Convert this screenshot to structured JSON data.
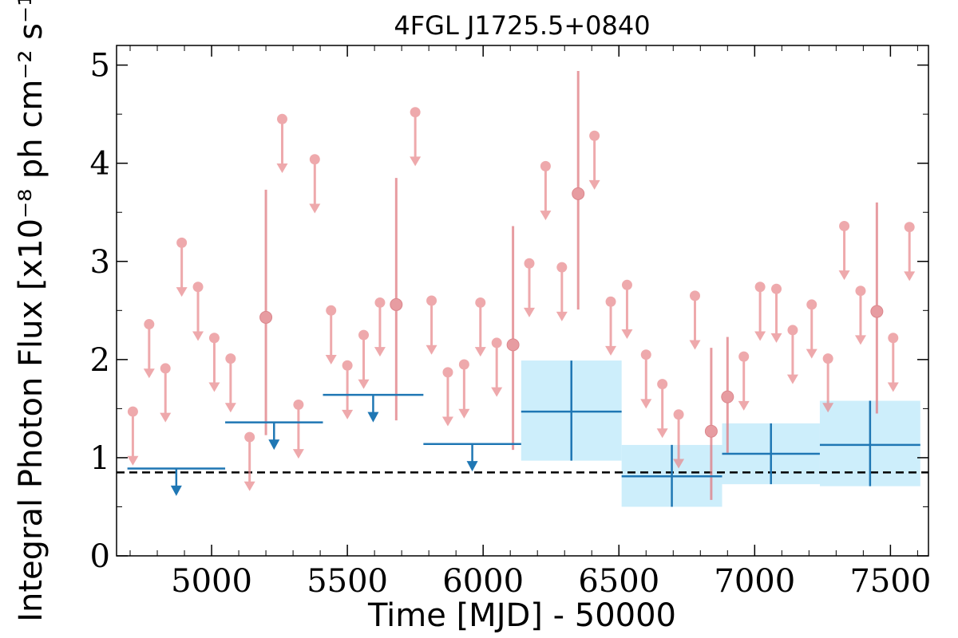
{
  "chart_data": {
    "type": "scatter",
    "title": "4FGL J1725.5+0840",
    "xlabel": "Time [MJD] - 50000",
    "ylabel": "Integral Photon Flux [x10⁻⁸ ph cm⁻² s⁻¹]",
    "xlim": [
      4650,
      7640
    ],
    "ylim": [
      0,
      5.2
    ],
    "xticks": [
      5000,
      5500,
      6000,
      6500,
      7000,
      7500
    ],
    "yticks": [
      0,
      1,
      2,
      3,
      4,
      5
    ],
    "xtick_labels": [
      "5000",
      "5500",
      "6000",
      "6500",
      "7000",
      "7500"
    ],
    "ytick_labels": [
      "0",
      "1",
      "2",
      "3",
      "4",
      "5"
    ],
    "grid": false,
    "reference_line": {
      "y": 0.85,
      "style": "dashed",
      "color": "#000000"
    },
    "series": [
      {
        "kind": "fine-bin-upper-limits",
        "color": "#e8868a",
        "points": [
          {
            "x": 4710,
            "y": 1.47
          },
          {
            "x": 4770,
            "y": 2.36
          },
          {
            "x": 4830,
            "y": 1.91
          },
          {
            "x": 4890,
            "y": 3.19
          },
          {
            "x": 4950,
            "y": 2.74
          },
          {
            "x": 5010,
            "y": 2.22
          },
          {
            "x": 5070,
            "y": 2.01
          },
          {
            "x": 5140,
            "y": 1.21
          },
          {
            "x": 5260,
            "y": 4.45
          },
          {
            "x": 5320,
            "y": 1.54
          },
          {
            "x": 5380,
            "y": 4.04
          },
          {
            "x": 5440,
            "y": 2.5
          },
          {
            "x": 5500,
            "y": 1.94
          },
          {
            "x": 5560,
            "y": 2.25
          },
          {
            "x": 5620,
            "y": 2.58
          },
          {
            "x": 5750,
            "y": 4.52
          },
          {
            "x": 5810,
            "y": 2.6
          },
          {
            "x": 5870,
            "y": 1.87
          },
          {
            "x": 5930,
            "y": 1.95
          },
          {
            "x": 5990,
            "y": 2.58
          },
          {
            "x": 6050,
            "y": 2.17
          },
          {
            "x": 6170,
            "y": 2.98
          },
          {
            "x": 6230,
            "y": 3.97
          },
          {
            "x": 6290,
            "y": 2.94
          },
          {
            "x": 6410,
            "y": 4.28
          },
          {
            "x": 6470,
            "y": 2.59
          },
          {
            "x": 6530,
            "y": 2.76
          },
          {
            "x": 6600,
            "y": 2.05
          },
          {
            "x": 6660,
            "y": 1.75
          },
          {
            "x": 6720,
            "y": 1.44
          },
          {
            "x": 6780,
            "y": 2.65
          },
          {
            "x": 6960,
            "y": 2.03
          },
          {
            "x": 7020,
            "y": 2.74
          },
          {
            "x": 7080,
            "y": 2.72
          },
          {
            "x": 7140,
            "y": 2.3
          },
          {
            "x": 7210,
            "y": 2.56
          },
          {
            "x": 7270,
            "y": 2.01
          },
          {
            "x": 7330,
            "y": 3.36
          },
          {
            "x": 7390,
            "y": 2.7
          },
          {
            "x": 7510,
            "y": 2.22
          },
          {
            "x": 7570,
            "y": 3.35
          }
        ]
      },
      {
        "kind": "fine-bin-detections",
        "color": "#e07b82",
        "points": [
          {
            "x": 5200,
            "y": 2.43,
            "ylo": 1.23,
            "yhi": 3.73
          },
          {
            "x": 5680,
            "y": 2.56,
            "ylo": 1.38,
            "yhi": 3.85
          },
          {
            "x": 6110,
            "y": 2.15,
            "ylo": 1.08,
            "yhi": 3.36
          },
          {
            "x": 6350,
            "y": 3.69,
            "ylo": 2.51,
            "yhi": 4.94
          },
          {
            "x": 6840,
            "y": 1.27,
            "ylo": 0.57,
            "yhi": 2.12
          },
          {
            "x": 6900,
            "y": 1.62,
            "ylo": 1.05,
            "yhi": 2.23
          },
          {
            "x": 7450,
            "y": 2.49,
            "ylo": 1.45,
            "yhi": 3.6
          }
        ]
      },
      {
        "kind": "coarse-bin-upper-limits",
        "color": "#1f77b4",
        "points": [
          {
            "x0": 4690,
            "x1": 5050,
            "y": 0.89,
            "xarrow": 4870
          },
          {
            "x0": 5050,
            "x1": 5410,
            "y": 1.36,
            "xarrow": 5230
          },
          {
            "x0": 5410,
            "x1": 5780,
            "y": 1.64,
            "xarrow": 5595
          },
          {
            "x0": 5780,
            "x1": 6140,
            "y": 1.14,
            "xarrow": 5960
          }
        ]
      },
      {
        "kind": "coarse-bin-detections",
        "color": "#1f77b4",
        "band_color": "#cdeefb",
        "points": [
          {
            "x0": 6140,
            "x1": 6510,
            "xc": 6325,
            "y": 1.47,
            "ylo": 0.97,
            "yhi": 1.99
          },
          {
            "x0": 6510,
            "x1": 6880,
            "xc": 6695,
            "y": 0.81,
            "ylo": 0.5,
            "yhi": 1.13
          },
          {
            "x0": 6880,
            "x1": 7240,
            "xc": 7060,
            "y": 1.04,
            "ylo": 0.73,
            "yhi": 1.35
          },
          {
            "x0": 7240,
            "x1": 7610,
            "xc": 7425,
            "y": 1.13,
            "ylo": 0.71,
            "yhi": 1.58
          }
        ]
      }
    ]
  }
}
